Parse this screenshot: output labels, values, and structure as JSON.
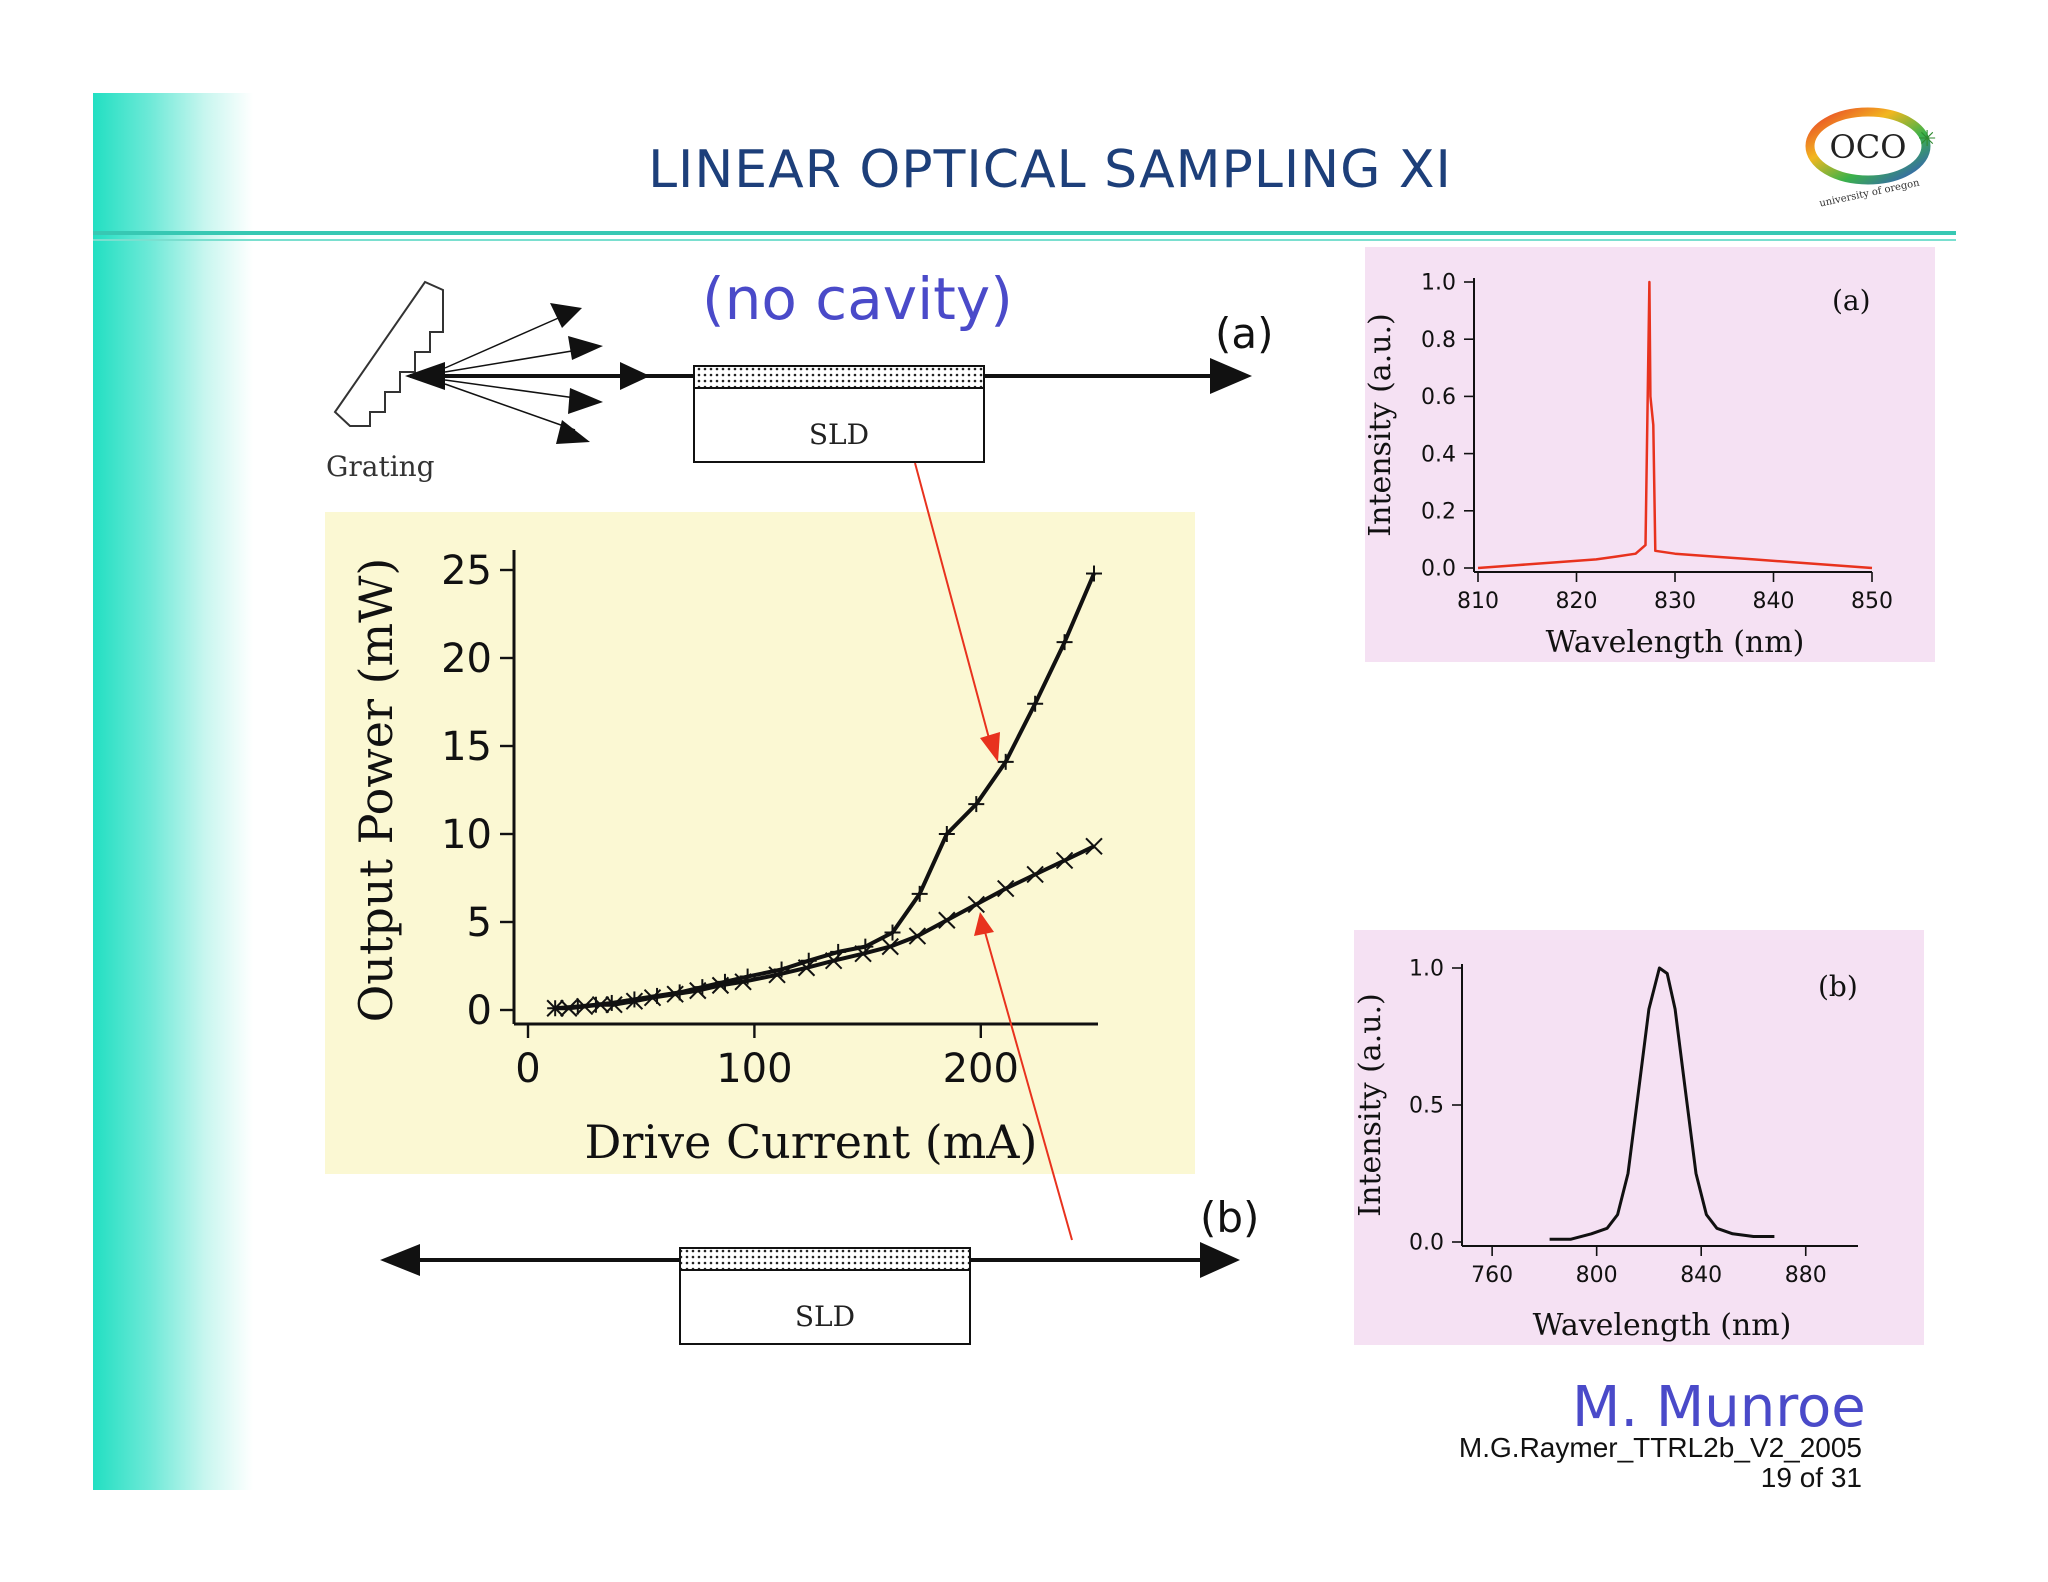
{
  "slide": {
    "title": "LINEAR OPTICAL SAMPLING XI",
    "subtitle": "(no cavity)",
    "author": "M. Munroe",
    "footer_line1": "M.G.Raymer_TTRL2b_V2_2005",
    "footer_line2": "19 of 31",
    "logo_text": "OCO",
    "logo_subtext": "university of oregon"
  },
  "diagram_a": {
    "label": "(a)",
    "grating_label": "Grating",
    "device_label": "SLD"
  },
  "diagram_b": {
    "label": "(b)",
    "device_label": "SLD"
  },
  "colors": {
    "title": "#1d3f7a",
    "accent_text": "#4a4ac9",
    "arrow_red": "#e8321e",
    "spectrum_red": "#e8321e",
    "yellow_panel": "#fbf8d3",
    "pink_panel": "#f5e1f3",
    "band": "#22dfc2"
  },
  "chart_data": [
    {
      "type": "line",
      "xlabel": "Drive Current (mA)",
      "ylabel": "Output Power (mW)",
      "xlim": [
        0,
        250
      ],
      "ylim": [
        0,
        25
      ],
      "xticks": [
        "0",
        "100",
        "200"
      ],
      "yticks": [
        "0",
        "5",
        "10",
        "15",
        "20",
        "25"
      ],
      "series": [
        {
          "marker": "+",
          "x": [
            12,
            22,
            30,
            37,
            47,
            57,
            67,
            77,
            87,
            97,
            112,
            124,
            137,
            149,
            161,
            173,
            185,
            198,
            211,
            224,
            237,
            250
          ],
          "y": [
            0.1,
            0.2,
            0.3,
            0.4,
            0.6,
            0.8,
            1.0,
            1.3,
            1.6,
            1.9,
            2.3,
            2.8,
            3.3,
            3.6,
            4.4,
            6.6,
            10.0,
            11.7,
            14.1,
            17.4,
            20.9,
            24.8
          ]
        },
        {
          "marker": "x",
          "x": [
            12,
            18,
            25,
            32,
            38,
            47,
            55,
            65,
            75,
            85,
            95,
            110,
            123,
            135,
            148,
            160,
            172,
            185,
            198,
            211,
            224,
            237,
            250
          ],
          "y": [
            0.1,
            0.1,
            0.2,
            0.3,
            0.3,
            0.5,
            0.7,
            0.9,
            1.1,
            1.4,
            1.6,
            2.0,
            2.4,
            2.8,
            3.2,
            3.6,
            4.2,
            5.1,
            6.0,
            6.9,
            7.7,
            8.5,
            9.3
          ]
        }
      ],
      "grid": false
    },
    {
      "type": "line",
      "panel_label": "(a)",
      "xlabel": "Wavelength (nm)",
      "ylabel": "Intensity (a.u.)",
      "xlim": [
        810,
        850
      ],
      "ylim": [
        0,
        1.0
      ],
      "xticks": [
        "810",
        "820",
        "830",
        "840",
        "850"
      ],
      "yticks": [
        "0.0",
        "0.2",
        "0.4",
        "0.6",
        "0.8",
        "1.0"
      ],
      "series": [
        {
          "x": [
            810,
            814,
            818,
            822,
            824,
            826,
            827,
            827.4,
            827.5,
            827.8,
            828,
            830,
            834,
            838,
            842,
            846,
            850
          ],
          "y": [
            0.0,
            0.01,
            0.02,
            0.03,
            0.04,
            0.05,
            0.08,
            1.0,
            0.6,
            0.5,
            0.06,
            0.05,
            0.04,
            0.03,
            0.02,
            0.01,
            0.0
          ]
        }
      ],
      "grid": false
    },
    {
      "type": "line",
      "panel_label": "(b)",
      "xlabel": "Wavelength (nm)",
      "ylabel": "Intensity (a.u.)",
      "xlim": [
        750,
        900
      ],
      "ylim": [
        0,
        1.0
      ],
      "xticks": [
        "760",
        "800",
        "840",
        "880"
      ],
      "yticks": [
        "0.0",
        "0.5",
        "1.0"
      ],
      "series": [
        {
          "x": [
            782,
            790,
            798,
            804,
            808,
            812,
            816,
            820,
            824,
            827,
            830,
            834,
            838,
            842,
            846,
            852,
            860,
            868
          ],
          "y": [
            0.01,
            0.01,
            0.03,
            0.05,
            0.1,
            0.25,
            0.55,
            0.85,
            1.0,
            0.98,
            0.85,
            0.55,
            0.25,
            0.1,
            0.05,
            0.03,
            0.02,
            0.02
          ]
        }
      ],
      "grid": false
    }
  ]
}
